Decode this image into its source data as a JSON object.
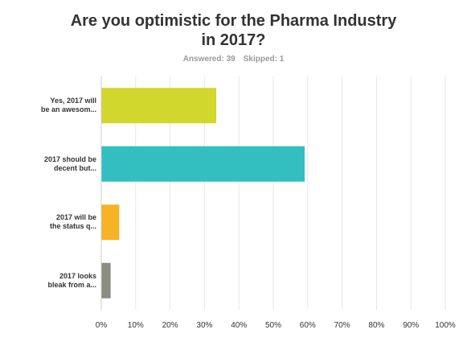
{
  "chart_data": {
    "type": "bar",
    "orientation": "horizontal",
    "title_lines": [
      "Are you optimistic for the Pharma Industry",
      "in 2017?"
    ],
    "answered_label": "Answered: 39",
    "skipped_label": "Skipped: 1",
    "categories": [
      {
        "lines": [
          "Yes, 2017 will",
          "be an awesom..."
        ],
        "value": 33.3,
        "color": "#d1d72c"
      },
      {
        "lines": [
          "2017 should be",
          "decent but..."
        ],
        "value": 59.0,
        "color": "#33bfbf"
      },
      {
        "lines": [
          "2017 will be",
          "the status q..."
        ],
        "value": 5.1,
        "color": "#f5b325"
      },
      {
        "lines": [
          "2017 looks",
          "bleak from a..."
        ],
        "value": 2.6,
        "color": "#8a8c80"
      }
    ],
    "xlim": [
      0,
      100
    ],
    "ticks": [
      "0%",
      "10%",
      "20%",
      "30%",
      "40%",
      "50%",
      "60%",
      "70%",
      "80%",
      "90%",
      "100%"
    ],
    "grid": true,
    "grid_color": "#e6e6e6"
  }
}
